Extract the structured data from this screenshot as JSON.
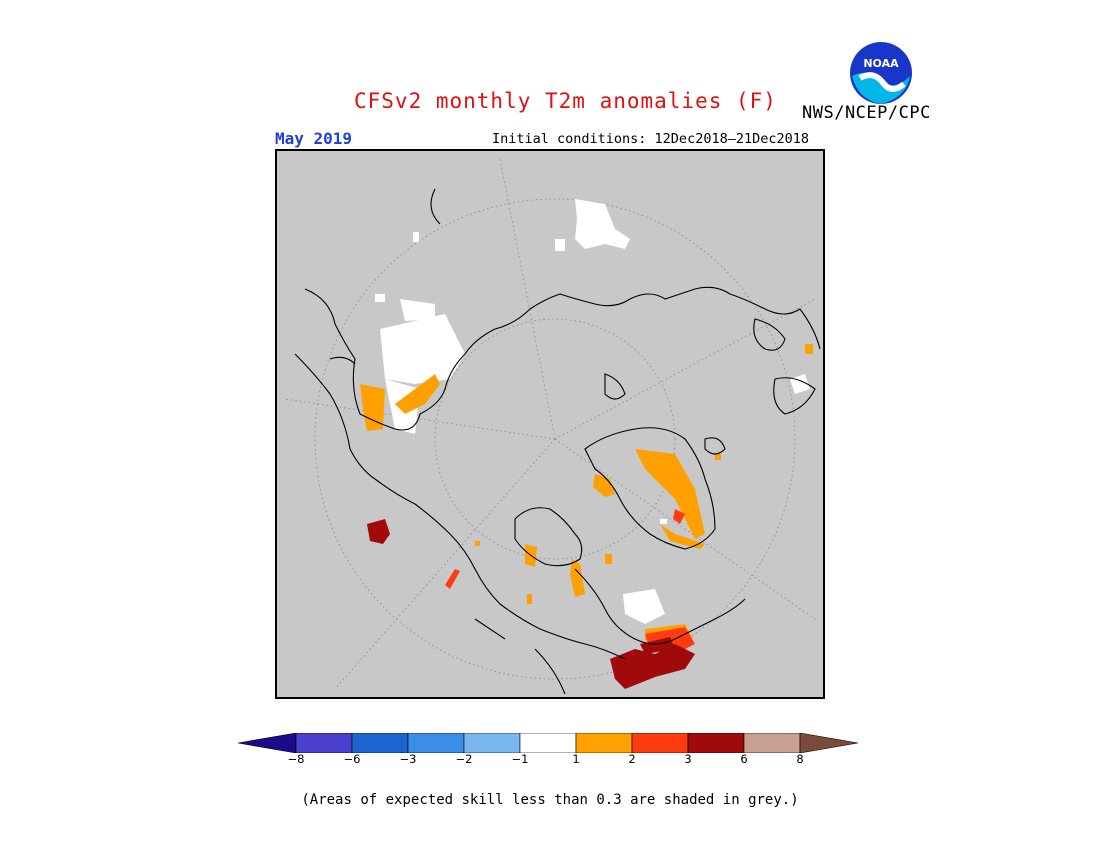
{
  "title": "CFSv2 monthly T2m anomalies (F)",
  "month_label": "May 2019",
  "initial_conditions": "Initial conditions: 12Dec2018–21Dec2018",
  "org_label": "NWS/NCEP/CPC",
  "logo_text": "NOAA",
  "colors": {
    "title": "#e01010",
    "month": "#1f3fd8",
    "map_background": "#c8c8c8",
    "coast": "#000000"
  },
  "colorbar": {
    "bins": [
      {
        "color": "#1a0a8c"
      },
      {
        "color": "#4b3fd0"
      },
      {
        "color": "#1c64d0"
      },
      {
        "color": "#3a8ee8"
      },
      {
        "color": "#7ab6f0"
      },
      {
        "color": "#ffffff"
      },
      {
        "color": "#ffa000"
      },
      {
        "color": "#ff3c10"
      },
      {
        "color": "#a00a0a"
      },
      {
        "color": "#c8a090"
      },
      {
        "color": "#7a4a3a"
      }
    ],
    "labels": [
      "−8",
      "−6",
      "−3",
      "−2",
      "−1",
      "1",
      "2",
      "3",
      "6",
      "8"
    ]
  },
  "footnote": "(Areas of expected skill less than 0.3 are shaded in grey.)"
}
